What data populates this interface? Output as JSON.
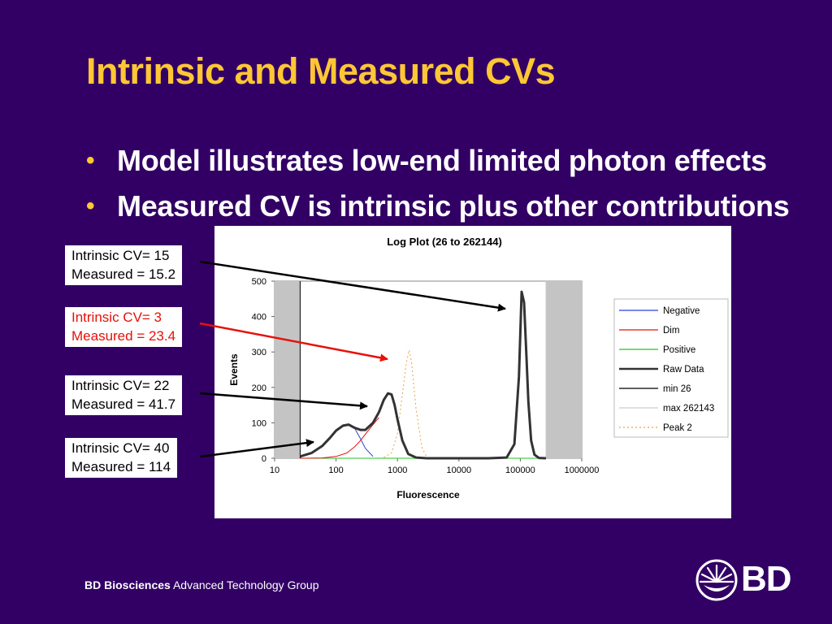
{
  "slide": {
    "title": "Intrinsic and Measured CVs",
    "bullets": [
      "Model illustrates low-end limited photon effects",
      "Measured CV is intrinsic plus other contributions"
    ],
    "callouts": [
      {
        "line1": "Intrinsic CV= 15",
        "line2": "Measured = 15.2",
        "color": "#000000"
      },
      {
        "line1": "Intrinsic CV= 3",
        "line2": "Measured = 23.4",
        "color": "#e8100a"
      },
      {
        "line1": "Intrinsic CV= 22",
        "line2": "Measured = 41.7",
        "color": "#000000"
      },
      {
        "line1": "Intrinsic CV= 40",
        "line2": "Measured = 114",
        "color": "#000000"
      }
    ],
    "footer_bold": "BD Biosciences",
    "footer_rest": " Advanced Technology Group",
    "logo_text": "BD",
    "colors": {
      "background": "#320064",
      "title": "#ffc733",
      "bullet": "#ffc733"
    }
  },
  "chart_data": {
    "type": "line",
    "title": "Log Plot (26 to 262144)",
    "xlabel": "Fluorescence",
    "ylabel": "Events",
    "xscale": "log",
    "xlim": [
      10,
      1000000
    ],
    "ylim": [
      0,
      500
    ],
    "xticks": [
      "10",
      "100",
      "1000",
      "10000",
      "100000",
      "1000000"
    ],
    "yticks": [
      "0",
      "100",
      "200",
      "300",
      "400",
      "500"
    ],
    "legend_position": "right",
    "shaded_regions": [
      [
        10,
        26
      ],
      [
        262143,
        1000000
      ]
    ],
    "series": [
      {
        "name": "Negative",
        "color": "#2d3fd6",
        "style": "solid",
        "width": 1,
        "x": [
          26,
          40,
          60,
          80,
          100,
          130,
          160,
          200,
          250,
          300,
          400
        ],
        "y": [
          5,
          15,
          35,
          58,
          78,
          92,
          95,
          85,
          55,
          28,
          5
        ]
      },
      {
        "name": "Dim",
        "color": "#e8100a",
        "style": "solid",
        "width": 1,
        "x": [
          26,
          60,
          100,
          150,
          200,
          250,
          300,
          400,
          500
        ],
        "y": [
          0,
          1,
          5,
          15,
          32,
          50,
          68,
          95,
          115
        ]
      },
      {
        "name": "Positive",
        "color": "#22c422",
        "style": "solid",
        "width": 1,
        "x": [
          26,
          1000,
          10000,
          50000,
          262143
        ],
        "y": [
          0,
          0,
          0,
          0,
          0
        ]
      },
      {
        "name": "Raw  Data",
        "color": "#333333",
        "style": "solid",
        "width": 3,
        "x": [
          26,
          40,
          60,
          80,
          100,
          130,
          160,
          200,
          250,
          300,
          400,
          500,
          600,
          700,
          800,
          900,
          1000,
          1200,
          1500,
          2000,
          3000,
          5000,
          10000,
          30000,
          60000,
          80000,
          95000,
          105000,
          115000,
          125000,
          135000,
          150000,
          170000,
          200000,
          262143
        ],
        "y": [
          5,
          15,
          35,
          58,
          78,
          92,
          95,
          86,
          80,
          80,
          100,
          130,
          165,
          183,
          180,
          150,
          110,
          50,
          12,
          2,
          0,
          0,
          0,
          0,
          2,
          40,
          230,
          470,
          440,
          300,
          160,
          50,
          10,
          1,
          0
        ]
      },
      {
        "name": "min 26",
        "color": "#000000",
        "style": "solid",
        "width": 1,
        "x": [
          26,
          26
        ],
        "y": [
          0,
          500
        ]
      },
      {
        "name": "max 262143",
        "color": "#cccccc",
        "style": "solid",
        "width": 1,
        "x": [
          262143,
          262143
        ],
        "y": [
          0,
          500
        ]
      },
      {
        "name": "Peak 2",
        "color": "#f0a040",
        "style": "dotted",
        "width": 1,
        "x": [
          600,
          800,
          1000,
          1200,
          1400,
          1550,
          1700,
          2000,
          2500,
          3000
        ],
        "y": [
          2,
          15,
          70,
          180,
          270,
          305,
          270,
          140,
          30,
          3
        ]
      }
    ]
  }
}
